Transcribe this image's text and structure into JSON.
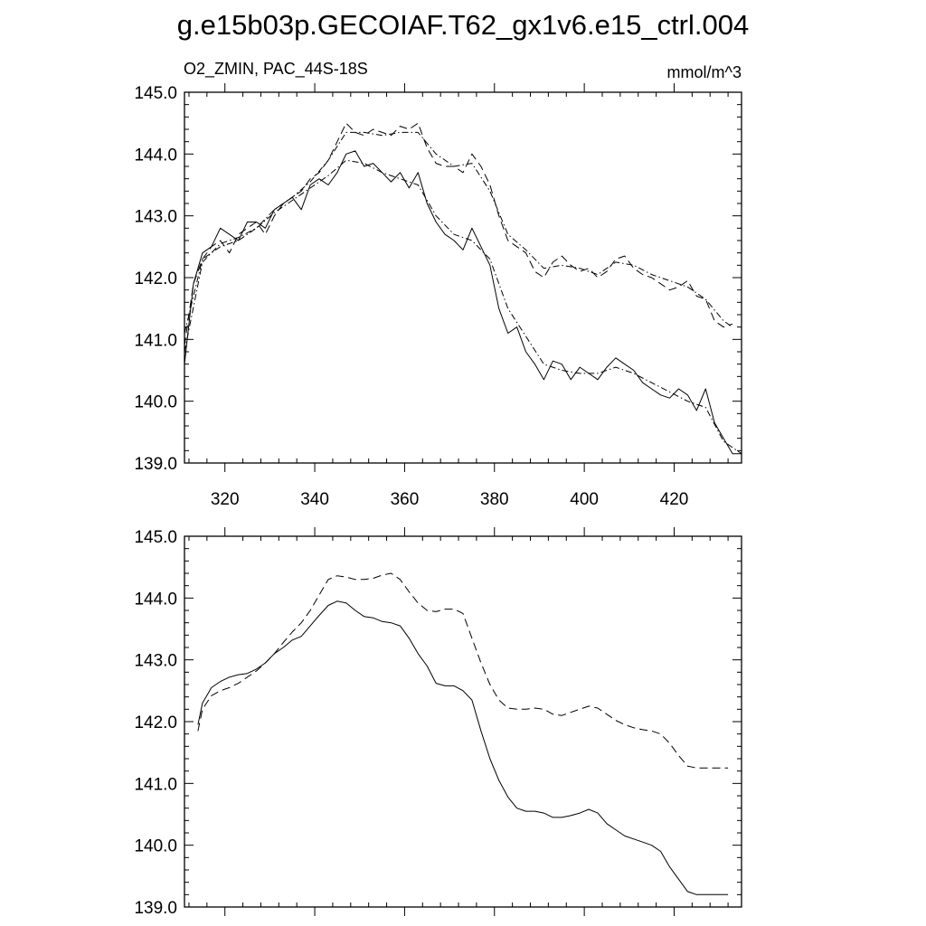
{
  "title": "g.e15b03p.GECOIAF.T62_gx1v6.e15_ctrl.004",
  "colors": {
    "background": "#ffffff",
    "ink": "#000000"
  },
  "chart_data": [
    {
      "type": "line",
      "subtitle_left": "O2_ZMIN, PAC_44S-18S",
      "subtitle_right": "mmol/m^3",
      "xlim": [
        311,
        435
      ],
      "ylim": [
        139.0,
        145.0
      ],
      "xticks": [
        320,
        340,
        360,
        380,
        400,
        420
      ],
      "xtick_labels": [
        "320",
        "340",
        "360",
        "380",
        "400",
        "420"
      ],
      "yticks": [
        139.0,
        140.0,
        141.0,
        142.0,
        143.0,
        144.0,
        145.0
      ],
      "ytick_labels": [
        "139.0",
        "140.0",
        "141.0",
        "142.0",
        "143.0",
        "144.0",
        "145.0"
      ],
      "series": [
        {
          "name": "series-a-raw",
          "style": "solid",
          "x": [
            311,
            313,
            315,
            317,
            319,
            321,
            323,
            325,
            327,
            329,
            331,
            333,
            335,
            337,
            339,
            341,
            343,
            345,
            347,
            349,
            351,
            353,
            355,
            357,
            359,
            361,
            363,
            365,
            367,
            369,
            371,
            373,
            375,
            377,
            379,
            381,
            383,
            385,
            387,
            389,
            391,
            393,
            395,
            397,
            399,
            401,
            403,
            405,
            407,
            409,
            411,
            413,
            415,
            417,
            419,
            421,
            423,
            425,
            427,
            429,
            431,
            433,
            435
          ],
          "values": [
            140.6,
            141.9,
            142.4,
            142.5,
            142.8,
            142.7,
            142.6,
            142.9,
            142.9,
            142.8,
            143.1,
            143.2,
            143.3,
            143.1,
            143.5,
            143.6,
            143.5,
            143.7,
            144.0,
            144.05,
            143.8,
            143.85,
            143.7,
            143.55,
            143.7,
            143.45,
            143.7,
            143.2,
            142.9,
            142.7,
            142.6,
            142.45,
            142.8,
            142.5,
            142.2,
            141.5,
            141.1,
            141.2,
            140.8,
            140.6,
            140.35,
            140.65,
            140.6,
            140.35,
            140.55,
            140.45,
            140.35,
            140.55,
            140.7,
            140.6,
            140.5,
            140.3,
            140.2,
            140.1,
            140.05,
            140.2,
            140.1,
            139.85,
            140.2,
            139.65,
            139.4,
            139.15,
            139.15
          ]
        },
        {
          "name": "series-a-smooth",
          "style": "dashdot",
          "x": [
            311,
            315,
            319,
            323,
            327,
            331,
            335,
            339,
            343,
            347,
            351,
            355,
            359,
            363,
            367,
            371,
            375,
            379,
            383,
            387,
            391,
            395,
            399,
            403,
            407,
            411,
            415,
            419,
            423,
            427,
            431,
            435
          ],
          "values": [
            140.8,
            142.25,
            142.55,
            142.65,
            142.8,
            143.05,
            143.25,
            143.45,
            143.65,
            143.9,
            143.85,
            143.7,
            143.6,
            143.5,
            143.0,
            142.7,
            142.6,
            142.3,
            141.5,
            141.05,
            140.6,
            140.5,
            140.45,
            140.45,
            140.55,
            140.45,
            140.3,
            140.15,
            140.0,
            139.9,
            139.35,
            139.15
          ]
        },
        {
          "name": "series-b-raw",
          "style": "dashed",
          "x": [
            311,
            313,
            315,
            317,
            319,
            321,
            323,
            325,
            327,
            329,
            331,
            333,
            335,
            337,
            339,
            341,
            343,
            345,
            347,
            349,
            351,
            353,
            355,
            357,
            359,
            361,
            363,
            365,
            367,
            369,
            371,
            373,
            375,
            377,
            379,
            381,
            383,
            385,
            387,
            389,
            391,
            393,
            395,
            397,
            399,
            401,
            403,
            405,
            407,
            409,
            411,
            413,
            415,
            417,
            419,
            421,
            423,
            425,
            427,
            429,
            431,
            433
          ],
          "values": [
            140.9,
            141.9,
            142.3,
            142.5,
            142.6,
            142.4,
            142.7,
            142.8,
            142.9,
            142.7,
            143.0,
            143.2,
            143.3,
            143.4,
            143.6,
            143.7,
            143.9,
            144.2,
            144.5,
            144.35,
            144.3,
            144.4,
            144.35,
            144.3,
            144.45,
            144.4,
            144.5,
            144.1,
            143.85,
            143.8,
            143.8,
            143.7,
            144.0,
            143.8,
            143.5,
            143.0,
            142.6,
            142.5,
            142.4,
            142.1,
            142.0,
            142.25,
            142.35,
            142.2,
            142.1,
            142.15,
            142.0,
            142.1,
            142.3,
            142.35,
            142.15,
            142.05,
            142.0,
            141.9,
            141.8,
            141.85,
            141.95,
            141.7,
            141.65,
            141.3,
            141.2,
            141.25
          ]
        },
        {
          "name": "series-b-smooth",
          "style": "dashdot",
          "x": [
            311,
            315,
            319,
            323,
            327,
            331,
            335,
            339,
            343,
            347,
            351,
            355,
            359,
            363,
            367,
            371,
            375,
            379,
            383,
            387,
            391,
            395,
            399,
            403,
            407,
            411,
            415,
            419,
            423,
            427,
            431,
            433
          ],
          "values": [
            141.1,
            142.3,
            142.5,
            142.6,
            142.8,
            143.1,
            143.3,
            143.55,
            143.9,
            144.35,
            144.35,
            144.3,
            144.35,
            144.35,
            144.0,
            143.8,
            143.85,
            143.4,
            142.7,
            142.45,
            142.15,
            142.2,
            142.15,
            142.05,
            142.25,
            142.2,
            142.05,
            141.95,
            141.85,
            141.65,
            141.3,
            141.2
          ]
        }
      ]
    },
    {
      "type": "line",
      "xlim": [
        311,
        435
      ],
      "ylim": [
        139.0,
        145.0
      ],
      "xticks": [
        320,
        340,
        360,
        380,
        400,
        420
      ],
      "yticks": [
        139.0,
        140.0,
        141.0,
        142.0,
        143.0,
        144.0,
        145.0
      ],
      "ytick_labels": [
        "139.0",
        "140.0",
        "141.0",
        "142.0",
        "143.0",
        "144.0",
        "145.0"
      ],
      "series": [
        {
          "name": "series-a-filtered",
          "style": "solid",
          "x": [
            314,
            315,
            317,
            319,
            321,
            323,
            325,
            327,
            329,
            331,
            333,
            335,
            337,
            339,
            341,
            343,
            345,
            347,
            349,
            351,
            353,
            355,
            357,
            359,
            361,
            363,
            365,
            367,
            369,
            371,
            373,
            375,
            377,
            379,
            381,
            383,
            385,
            387,
            389,
            391,
            393,
            395,
            397,
            399,
            401,
            403,
            405,
            407,
            409,
            411,
            413,
            415,
            417,
            419,
            421,
            423,
            425,
            427,
            429,
            431,
            432
          ],
          "values": [
            141.95,
            142.3,
            142.55,
            142.65,
            142.72,
            142.76,
            142.78,
            142.85,
            142.95,
            143.1,
            143.2,
            143.32,
            143.38,
            143.55,
            143.72,
            143.88,
            143.95,
            143.92,
            143.8,
            143.7,
            143.68,
            143.62,
            143.6,
            143.55,
            143.35,
            143.1,
            142.9,
            142.62,
            142.58,
            142.58,
            142.5,
            142.35,
            141.85,
            141.4,
            141.05,
            140.78,
            140.6,
            140.55,
            140.55,
            140.52,
            140.45,
            140.45,
            140.48,
            140.52,
            140.58,
            140.52,
            140.35,
            140.25,
            140.15,
            140.1,
            140.05,
            140.0,
            139.9,
            139.65,
            139.45,
            139.25,
            139.2,
            139.2,
            139.2,
            139.2,
            139.2
          ]
        },
        {
          "name": "series-b-filtered",
          "style": "dashed",
          "x": [
            314,
            315,
            317,
            319,
            321,
            323,
            325,
            327,
            329,
            331,
            333,
            335,
            337,
            339,
            341,
            343,
            345,
            347,
            349,
            351,
            353,
            355,
            357,
            359,
            361,
            363,
            365,
            367,
            369,
            371,
            373,
            375,
            377,
            379,
            381,
            383,
            385,
            387,
            389,
            391,
            393,
            395,
            397,
            399,
            401,
            403,
            405,
            407,
            409,
            411,
            413,
            415,
            417,
            419,
            421,
            423,
            425,
            427,
            429,
            431,
            432
          ],
          "values": [
            141.85,
            142.2,
            142.42,
            142.5,
            142.55,
            142.62,
            142.72,
            142.82,
            142.95,
            143.1,
            143.28,
            143.45,
            143.6,
            143.8,
            144.05,
            144.3,
            144.36,
            144.34,
            144.3,
            144.3,
            144.32,
            144.37,
            144.4,
            144.3,
            144.1,
            143.92,
            143.8,
            143.78,
            143.82,
            143.82,
            143.75,
            143.35,
            142.95,
            142.6,
            142.35,
            142.22,
            142.2,
            142.2,
            142.22,
            142.2,
            142.12,
            142.1,
            142.15,
            142.2,
            142.25,
            142.22,
            142.12,
            142.02,
            141.95,
            141.9,
            141.87,
            141.85,
            141.8,
            141.65,
            141.45,
            141.28,
            141.25,
            141.25,
            141.25,
            141.25,
            141.25
          ]
        }
      ]
    }
  ]
}
